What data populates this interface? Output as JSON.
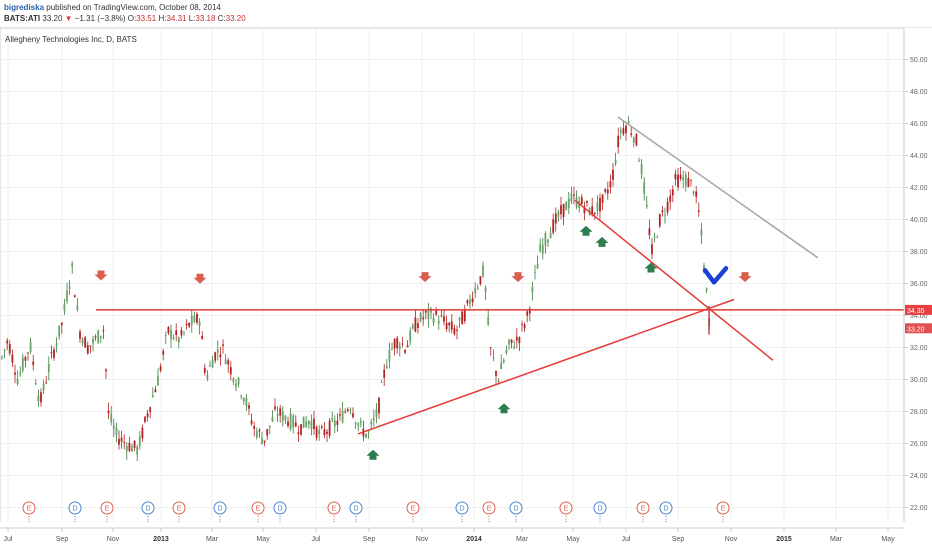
{
  "header": {
    "author": "bigrediska",
    "published": "published on TradingView.com, October 08, 2014",
    "symbol": "BATS:ATI",
    "last": "33.20",
    "change": "−1.31 (−3.8%)",
    "open_label": "O:",
    "open": "33.51",
    "high_label": "H:",
    "high": "34.31",
    "low_label": "L:",
    "low": "33.18",
    "close_label": "C:",
    "close": "33.20"
  },
  "chart_data": {
    "type": "candlestick",
    "title": "Allegheny Technologies Inc, D, BATS",
    "ylim": [
      20,
      52
    ],
    "y_ticks": [
      "50.00",
      "48.00",
      "46.00",
      "44.00",
      "42.00",
      "40.00",
      "38.00",
      "36.00",
      "34.00",
      "32.00",
      "30.00",
      "28.00",
      "26.00",
      "24.00",
      "22.00"
    ],
    "x_ticks": [
      {
        "label": "Jul",
        "bold": false
      },
      {
        "label": "Sep",
        "bold": false
      },
      {
        "label": "Nov",
        "bold": false
      },
      {
        "label": "2013",
        "bold": true
      },
      {
        "label": "Mar",
        "bold": false
      },
      {
        "label": "May",
        "bold": false
      },
      {
        "label": "Jul",
        "bold": false
      },
      {
        "label": "Sep",
        "bold": false
      },
      {
        "label": "Nov",
        "bold": false
      },
      {
        "label": "2014",
        "bold": true
      },
      {
        "label": "Mar",
        "bold": false
      },
      {
        "label": "May",
        "bold": false
      },
      {
        "label": "Jul",
        "bold": false
      },
      {
        "label": "Sep",
        "bold": false
      },
      {
        "label": "Nov",
        "bold": false
      },
      {
        "label": "2015",
        "bold": true
      },
      {
        "label": "Mar",
        "bold": false
      },
      {
        "label": "May",
        "bold": false
      }
    ],
    "price_labels": [
      {
        "value": "34.35",
        "y": 34.35,
        "color": "#e84040"
      },
      {
        "value": "33.20",
        "y": 33.2,
        "color": "#e05050"
      }
    ],
    "price_path": [
      [
        0,
        31
      ],
      [
        8,
        32.5
      ],
      [
        18,
        30
      ],
      [
        30,
        32.2
      ],
      [
        40,
        28.5
      ],
      [
        50,
        31
      ],
      [
        62,
        33.5
      ],
      [
        72,
        37
      ],
      [
        80,
        33
      ],
      [
        88,
        32
      ],
      [
        96,
        32.5
      ],
      [
        104,
        33.2
      ],
      [
        108,
        28
      ],
      [
        116,
        26.5
      ],
      [
        126,
        26
      ],
      [
        138,
        25.6
      ],
      [
        148,
        28
      ],
      [
        158,
        30
      ],
      [
        168,
        33
      ],
      [
        180,
        32.5
      ],
      [
        190,
        33.5
      ],
      [
        200,
        33.8
      ],
      [
        206,
        30
      ],
      [
        214,
        31.5
      ],
      [
        222,
        32
      ],
      [
        232,
        30.5
      ],
      [
        244,
        29
      ],
      [
        254,
        27
      ],
      [
        264,
        26.2
      ],
      [
        276,
        28
      ],
      [
        288,
        27.5
      ],
      [
        300,
        27
      ],
      [
        310,
        27.5
      ],
      [
        320,
        26.5
      ],
      [
        330,
        27
      ],
      [
        340,
        27.5
      ],
      [
        350,
        28.5
      ],
      [
        360,
        27
      ],
      [
        368,
        26.5
      ],
      [
        378,
        28
      ],
      [
        386,
        31
      ],
      [
        396,
        32.5
      ],
      [
        406,
        32
      ],
      [
        416,
        33.5
      ],
      [
        426,
        34
      ],
      [
        436,
        34
      ],
      [
        446,
        33.5
      ],
      [
        456,
        33
      ],
      [
        464,
        34
      ],
      [
        474,
        35.5
      ],
      [
        484,
        36.8
      ],
      [
        490,
        32
      ],
      [
        498,
        30
      ],
      [
        508,
        32
      ],
      [
        518,
        32.5
      ],
      [
        528,
        34
      ],
      [
        540,
        38
      ],
      [
        552,
        39.5
      ],
      [
        562,
        40.5
      ],
      [
        572,
        41.3
      ],
      [
        582,
        41
      ],
      [
        592,
        40.5
      ],
      [
        602,
        41
      ],
      [
        612,
        42.5
      ],
      [
        620,
        45.5
      ],
      [
        628,
        46
      ],
      [
        636,
        45
      ],
      [
        642,
        43
      ],
      [
        646,
        41
      ],
      [
        652,
        38
      ],
      [
        660,
        40
      ],
      [
        668,
        41
      ],
      [
        676,
        42.5
      ],
      [
        686,
        42.5
      ],
      [
        694,
        42
      ],
      [
        700,
        40
      ],
      [
        704,
        37
      ],
      [
        708,
        34.5
      ],
      [
        710,
        33.2
      ]
    ],
    "events": [
      {
        "type": "E",
        "x": 29
      },
      {
        "type": "D",
        "x": 75
      },
      {
        "type": "E",
        "x": 107
      },
      {
        "type": "D",
        "x": 148
      },
      {
        "type": "E",
        "x": 179
      },
      {
        "type": "D",
        "x": 220
      },
      {
        "type": "E",
        "x": 258
      },
      {
        "type": "D",
        "x": 280
      },
      {
        "type": "E",
        "x": 334
      },
      {
        "type": "D",
        "x": 356
      },
      {
        "type": "E",
        "x": 413
      },
      {
        "type": "D",
        "x": 462
      },
      {
        "type": "E",
        "x": 489
      },
      {
        "type": "D",
        "x": 516
      },
      {
        "type": "E",
        "x": 566
      },
      {
        "type": "D",
        "x": 600
      },
      {
        "type": "E",
        "x": 643
      },
      {
        "type": "D",
        "x": 666
      },
      {
        "type": "E",
        "x": 723
      }
    ],
    "down_arrows": [
      {
        "x": 101,
        "y": 36.5
      },
      {
        "x": 200,
        "y": 36.3
      },
      {
        "x": 425,
        "y": 36.4
      },
      {
        "x": 518,
        "y": 36.4
      },
      {
        "x": 745,
        "y": 36.4
      }
    ],
    "up_arrows": [
      {
        "x": 373,
        "y": 25.3
      },
      {
        "x": 504,
        "y": 28.2
      },
      {
        "x": 586,
        "y": 39.3
      },
      {
        "x": 602,
        "y": 38.6
      },
      {
        "x": 651,
        "y": 37.0
      }
    ],
    "lines": [
      {
        "x1": 96,
        "y1": 34.35,
        "x2": 932,
        "y2": 34.35,
        "color": "#e53935",
        "width": 1.5
      },
      {
        "x1": 358,
        "y1": 26.6,
        "x2": 734,
        "y2": 35.0,
        "color": "#e53935",
        "width": 1.5
      },
      {
        "x1": 575,
        "y1": 41.2,
        "x2": 773,
        "y2": 31.2,
        "color": "#e53935",
        "width": 1.5
      },
      {
        "x1": 618,
        "y1": 46.4,
        "x2": 818,
        "y2": 37.6,
        "color": "#a8a8a8",
        "width": 1.6
      }
    ],
    "checkmark": {
      "x": 716,
      "y": 36.2,
      "color": "#1a3fd6"
    },
    "colors": {
      "up": "#3a7f3a",
      "down": "#b22222",
      "grid": "#eef0f2",
      "event_e": "#e06050",
      "event_d": "#4a86c8",
      "arrow_down": "#d96050",
      "arrow_up": "#2e7d4f"
    }
  }
}
